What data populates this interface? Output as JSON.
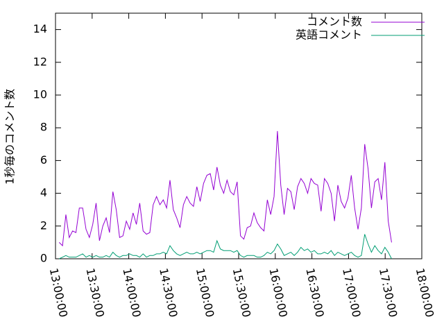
{
  "chart_data": {
    "type": "line",
    "ylabel": "1秒毎のコメント数",
    "x": [
      "13:03:00",
      "13:05:45",
      "13:08:30",
      "13:11:15",
      "13:14:00",
      "13:16:45",
      "13:19:30",
      "13:22:15",
      "13:25:00",
      "13:27:45",
      "13:30:30",
      "13:33:15",
      "13:36:00",
      "13:38:45",
      "13:41:30",
      "13:44:15",
      "13:47:00",
      "13:49:45",
      "13:52:30",
      "13:55:15",
      "13:58:00",
      "14:00:45",
      "14:03:30",
      "14:06:15",
      "14:09:00",
      "14:11:45",
      "14:14:30",
      "14:17:15",
      "14:20:00",
      "14:22:45",
      "14:25:30",
      "14:28:15",
      "14:31:00",
      "14:33:45",
      "14:36:30",
      "14:39:15",
      "14:42:00",
      "14:44:45",
      "14:47:30",
      "14:50:15",
      "14:53:00",
      "14:55:45",
      "14:58:30",
      "15:01:15",
      "15:04:00",
      "15:06:45",
      "15:09:30",
      "15:12:15",
      "15:15:00",
      "15:17:45",
      "15:20:30",
      "15:23:15",
      "15:26:00",
      "15:28:45",
      "15:31:30",
      "15:34:15",
      "15:37:00",
      "15:39:45",
      "15:42:30",
      "15:45:15",
      "15:48:00",
      "15:50:45",
      "15:53:30",
      "15:56:15",
      "15:59:00",
      "16:01:45",
      "16:04:30",
      "16:07:15",
      "16:10:00",
      "16:12:45",
      "16:15:30",
      "16:18:15",
      "16:21:00",
      "16:23:45",
      "16:26:30",
      "16:29:15",
      "16:32:00",
      "16:34:45",
      "16:37:30",
      "16:40:15",
      "16:43:00",
      "16:45:45",
      "16:48:30",
      "16:51:15",
      "16:54:00",
      "16:56:45",
      "16:59:30",
      "17:02:15",
      "17:05:00",
      "17:07:45",
      "17:10:30",
      "17:13:15",
      "17:16:00",
      "17:18:45",
      "17:21:30",
      "17:24:15",
      "17:27:00",
      "17:29:45",
      "17:32:30",
      "17:35:15"
    ],
    "series": [
      {
        "name": "コメント数",
        "color": "#9400d3",
        "values": [
          1.0,
          0.8,
          2.7,
          1.3,
          1.7,
          1.6,
          3.1,
          3.1,
          1.8,
          1.3,
          2.1,
          3.4,
          1.1,
          2.0,
          2.5,
          1.6,
          4.1,
          3.0,
          1.3,
          1.4,
          2.3,
          1.8,
          2.8,
          2.1,
          3.4,
          1.7,
          1.5,
          1.6,
          3.3,
          3.8,
          3.3,
          3.6,
          3.1,
          4.8,
          3.0,
          2.5,
          1.9,
          3.3,
          3.8,
          3.4,
          3.2,
          4.4,
          3.5,
          4.6,
          5.1,
          5.2,
          4.2,
          5.6,
          4.5,
          4.0,
          4.8,
          4.1,
          3.9,
          4.7,
          1.4,
          1.2,
          1.9,
          2.0,
          2.8,
          2.2,
          1.9,
          1.7,
          3.6,
          2.7,
          3.8,
          7.8,
          4.5,
          2.7,
          4.3,
          4.1,
          3.0,
          4.4,
          4.9,
          4.6,
          4.0,
          4.9,
          4.6,
          4.5,
          2.9,
          4.9,
          4.6,
          4.0,
          2.3,
          4.5,
          3.5,
          3.1,
          3.7,
          5.1,
          3.1,
          1.8,
          3.1,
          7.0,
          5.5,
          3.1,
          4.7,
          4.9,
          3.6,
          5.9,
          2.3,
          1.0
        ]
      },
      {
        "name": "英語コメント",
        "color": "#009e73",
        "values": [
          0.0,
          0.1,
          0.2,
          0.1,
          0.1,
          0.1,
          0.2,
          0.3,
          0.1,
          0.2,
          0.1,
          0.2,
          0.1,
          0.1,
          0.2,
          0.1,
          0.4,
          0.2,
          0.1,
          0.2,
          0.2,
          0.3,
          0.2,
          0.2,
          0.1,
          0.3,
          0.1,
          0.2,
          0.2,
          0.3,
          0.3,
          0.4,
          0.3,
          0.8,
          0.5,
          0.3,
          0.2,
          0.3,
          0.4,
          0.3,
          0.3,
          0.4,
          0.3,
          0.4,
          0.5,
          0.5,
          0.4,
          1.1,
          0.6,
          0.5,
          0.5,
          0.5,
          0.4,
          0.5,
          0.2,
          0.1,
          0.2,
          0.2,
          0.2,
          0.1,
          0.1,
          0.2,
          0.4,
          0.3,
          0.5,
          0.9,
          0.6,
          0.2,
          0.3,
          0.4,
          0.2,
          0.4,
          0.7,
          0.5,
          0.6,
          0.4,
          0.5,
          0.3,
          0.3,
          0.4,
          0.3,
          0.5,
          0.2,
          0.4,
          0.3,
          0.2,
          0.3,
          0.4,
          0.2,
          0.1,
          0.2,
          1.5,
          0.9,
          0.4,
          0.8,
          0.5,
          0.3,
          0.7,
          0.4,
          0.0
        ]
      }
    ],
    "xlim": [
      "13:00:00",
      "18:00:00"
    ],
    "xticks": [
      "13:00:00",
      "13:30:00",
      "14:00:00",
      "14:30:00",
      "15:00:00",
      "15:30:00",
      "16:00:00",
      "16:30:00",
      "17:00:00",
      "17:30:00",
      "18:00:00"
    ],
    "ylim": [
      0,
      15
    ],
    "yticks": [
      0,
      2,
      4,
      6,
      8,
      10,
      12,
      14
    ],
    "legend": "top-right"
  }
}
